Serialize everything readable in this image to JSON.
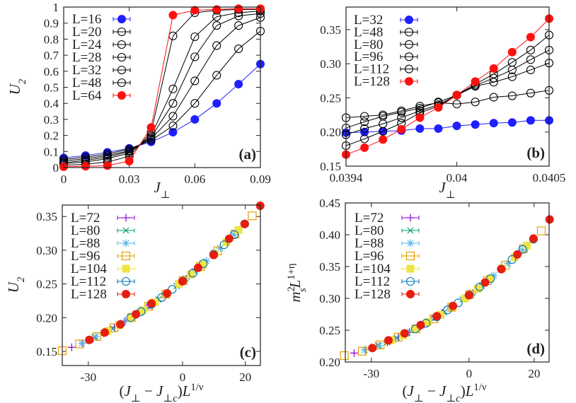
{
  "chart_data": [
    {
      "id": "a",
      "type": "line",
      "panel_label": "(a)",
      "xlabel": [
        {
          "t": "J",
          "s": "i"
        },
        {
          "t": "⊥",
          "s": "sub"
        }
      ],
      "ylabel": [
        {
          "t": "U",
          "s": "i"
        },
        {
          "t": "2",
          "s": "sub"
        }
      ],
      "xlim": [
        0,
        0.09
      ],
      "ylim": [
        0,
        1
      ],
      "xticks": [
        "0",
        "0.03",
        "0.06",
        "0.09"
      ],
      "yticks": [
        "0",
        "0.1",
        "0.2",
        "0.3",
        "0.4",
        "0.5",
        "0.6",
        "0.7",
        "0.8",
        "0.9",
        "1"
      ],
      "legend_position": "top-left",
      "x": [
        0,
        0.01,
        0.02,
        0.03,
        0.04,
        0.05,
        0.06,
        0.07,
        0.08,
        0.09
      ],
      "series": [
        {
          "name": "L=16",
          "color": "#1f1fff",
          "marker": "filled-circle",
          "values": [
            0.06,
            0.075,
            0.095,
            0.12,
            0.16,
            0.22,
            0.3,
            0.4,
            0.52,
            0.645
          ]
        },
        {
          "name": "L=20",
          "color": "#000000",
          "marker": "open-circle",
          "values": [
            0.05,
            0.065,
            0.085,
            0.115,
            0.17,
            0.26,
            0.4,
            0.575,
            0.74,
            0.85
          ]
        },
        {
          "name": "L=24",
          "color": "#000000",
          "marker": "open-circle",
          "values": [
            0.04,
            0.055,
            0.075,
            0.105,
            0.18,
            0.32,
            0.54,
            0.76,
            0.885,
            0.935
          ]
        },
        {
          "name": "L=28",
          "color": "#000000",
          "marker": "open-circle",
          "values": [
            0.03,
            0.045,
            0.065,
            0.1,
            0.19,
            0.4,
            0.69,
            0.885,
            0.945,
            0.96
          ]
        },
        {
          "name": "L=32",
          "color": "#000000",
          "marker": "open-circle",
          "values": [
            0.025,
            0.035,
            0.055,
            0.09,
            0.2,
            0.49,
            0.815,
            0.94,
            0.965,
            0.975
          ]
        },
        {
          "name": "L=48",
          "color": "#000000",
          "marker": "open-circle",
          "values": [
            0.015,
            0.02,
            0.035,
            0.07,
            0.22,
            0.82,
            0.965,
            0.98,
            0.985,
            0.985
          ]
        },
        {
          "name": "L=64",
          "color": "#ff1010",
          "marker": "filled-circle",
          "values": [
            0.005,
            0.008,
            0.012,
            0.04,
            0.25,
            0.95,
            0.98,
            0.985,
            0.99,
            0.99
          ]
        }
      ]
    },
    {
      "id": "b",
      "type": "line",
      "panel_label": "(b)",
      "xlabel": [
        {
          "t": "J",
          "s": "i"
        },
        {
          "t": "⊥",
          "s": "sub"
        }
      ],
      "ylabel": [],
      "xlim": [
        0.0394,
        0.0405
      ],
      "ylim": [
        0.15,
        0.383
      ],
      "xticks": [
        "0.0394",
        "0.04",
        "0.0405"
      ],
      "yticks": [
        "0.15",
        "0.20",
        "0.25",
        "0.30",
        "0.35"
      ],
      "legend_position": "top-left",
      "x": [
        0.0394,
        0.0395,
        0.0396,
        0.0397,
        0.0398,
        0.0399,
        0.04,
        0.0401,
        0.0402,
        0.0403,
        0.0404,
        0.0405
      ],
      "series": [
        {
          "name": "L=32",
          "color": "#1f1fff",
          "marker": "filled-circle",
          "values": [
            0.199,
            0.2,
            0.201,
            0.202,
            0.205,
            0.205,
            0.209,
            0.211,
            0.213,
            0.214,
            0.217,
            0.217
          ]
        },
        {
          "name": "L=48",
          "color": "#000000",
          "marker": "open-circle",
          "values": [
            0.221,
            0.223,
            0.225,
            0.231,
            0.238,
            0.243,
            0.241,
            0.244,
            0.251,
            0.253,
            0.257,
            0.261
          ]
        },
        {
          "name": "L=80",
          "color": "#000000",
          "marker": "open-circle",
          "values": [
            0.206,
            0.215,
            0.223,
            0.229,
            0.235,
            0.244,
            0.254,
            0.267,
            0.273,
            0.281,
            0.291,
            0.301
          ]
        },
        {
          "name": "L=96",
          "color": "#000000",
          "marker": "open-circle",
          "values": [
            0.196,
            0.205,
            0.212,
            0.221,
            0.231,
            0.24,
            0.254,
            0.268,
            0.279,
            0.291,
            0.306,
            0.32
          ]
        },
        {
          "name": "L=112",
          "color": "#000000",
          "marker": "open-circle",
          "values": [
            0.18,
            0.19,
            0.201,
            0.213,
            0.228,
            0.238,
            0.254,
            0.27,
            0.285,
            0.302,
            0.32,
            0.342
          ]
        },
        {
          "name": "L=128",
          "color": "#ff1010",
          "marker": "filled-circle",
          "values": [
            0.167,
            0.177,
            0.189,
            0.204,
            0.221,
            0.236,
            0.254,
            0.274,
            0.293,
            0.317,
            0.339,
            0.366
          ]
        }
      ]
    },
    {
      "id": "c",
      "type": "scatter",
      "panel_label": "(c)",
      "xlabel": [
        {
          "t": "(",
          "s": "n"
        },
        {
          "t": "J",
          "s": "i"
        },
        {
          "t": "⊥",
          "s": "sub"
        },
        {
          "t": " − ",
          "s": "n"
        },
        {
          "t": "J",
          "s": "i"
        },
        {
          "t": "⊥c",
          "s": "sub"
        },
        {
          "t": ")",
          "s": "n"
        },
        {
          "t": "L",
          "s": "i"
        },
        {
          "t": "1/ν",
          "s": "sup"
        }
      ],
      "ylabel": [
        {
          "t": "U",
          "s": "i"
        },
        {
          "t": "2",
          "s": "sub"
        }
      ],
      "xlim": [
        -38.3,
        24.8
      ],
      "ylim": [
        0.129,
        0.367
      ],
      "xticks": [
        "-30",
        "0",
        "20"
      ],
      "yticks": [
        "0.15",
        "0.20",
        "0.25",
        "0.30",
        "0.35"
      ],
      "legend_position": "top-left",
      "series": [
        {
          "name": "L=72",
          "color": "#9400d3",
          "marker": "plus",
          "x": [
            -35.3,
            -31.9,
            -28.5,
            -25.1,
            -21.7,
            -18.3,
            -14.9,
            -11.5,
            -8.1,
            -4.7,
            -1.3,
            2.1
          ],
          "y": [
            0.156,
            0.162,
            0.169,
            0.177,
            0.186,
            0.195,
            0.204,
            0.214,
            0.225,
            0.237,
            0.249,
            0.262
          ]
        },
        {
          "name": "L=80",
          "color": "#009e73",
          "marker": "cross",
          "x": [
            -28,
            -25.1,
            -22.2,
            -19.3,
            -16.4,
            -13.5,
            -10.6,
            -7.7,
            -4.8,
            -1.9,
            1,
            3.9
          ],
          "y": [
            0.171,
            0.177,
            0.184,
            0.192,
            0.2,
            0.208,
            0.217,
            0.227,
            0.237,
            0.247,
            0.258,
            0.269
          ]
        },
        {
          "name": "L=88",
          "color": "#56b4e9",
          "marker": "star",
          "x": [
            -32,
            -27.6,
            -23.2,
            -18.8,
            -14.4,
            -10,
            -5.6,
            -1.2,
            3.2,
            7.6,
            12,
            16.4
          ],
          "y": [
            0.162,
            0.172,
            0.182,
            0.193,
            0.206,
            0.219,
            0.234,
            0.25,
            0.266,
            0.284,
            0.303,
            0.323
          ]
        },
        {
          "name": "L=96",
          "color": "#e69f00",
          "marker": "open-square",
          "x": [
            -38.3,
            -32.8,
            -27.3,
            -21.8,
            -16.3,
            -10.8,
            -5.3,
            0.2,
            5.7,
            11.2,
            16.7,
            22.2
          ],
          "y": [
            0.151,
            0.161,
            0.172,
            0.185,
            0.2,
            0.217,
            0.235,
            0.255,
            0.276,
            0.299,
            0.324,
            0.351
          ]
        },
        {
          "name": "L=104",
          "color": "#f0e442",
          "marker": "filled-square",
          "x": [
            -24,
            -20.2,
            -16.4,
            -12.6,
            -8.8,
            -5,
            -1.2,
            2.6,
            6.4,
            10.2,
            14,
            17.8
          ],
          "y": [
            0.18,
            0.189,
            0.2,
            0.211,
            0.223,
            0.236,
            0.25,
            0.264,
            0.279,
            0.295,
            0.312,
            0.33
          ]
        },
        {
          "name": "L=112",
          "color": "#0072b2",
          "marker": "open-circle",
          "x": [
            -16.5,
            -13.2,
            -9.9,
            -6.6,
            -3.3,
            0,
            3.3,
            6.6,
            9.9,
            13.2,
            16.5,
            19.8
          ],
          "y": [
            0.2,
            0.209,
            0.22,
            0.23,
            0.242,
            0.254,
            0.266,
            0.28,
            0.294,
            0.308,
            0.323,
            0.339
          ]
        },
        {
          "name": "L=128",
          "color": "#e51e10",
          "marker": "filled-circle",
          "x": [
            -29.7,
            -24.75,
            -19.8,
            -14.85,
            -9.9,
            -4.95,
            0,
            4.95,
            9.9,
            14.85,
            19.8,
            24.75
          ],
          "y": [
            0.167,
            0.178,
            0.19,
            0.205,
            0.221,
            0.236,
            0.254,
            0.274,
            0.293,
            0.317,
            0.339,
            0.366
          ]
        }
      ]
    },
    {
      "id": "d",
      "type": "scatter",
      "panel_label": "(d)",
      "xlabel": [
        {
          "t": "(",
          "s": "n"
        },
        {
          "t": "J",
          "s": "i"
        },
        {
          "t": "⊥",
          "s": "sub"
        },
        {
          "t": " − ",
          "s": "n"
        },
        {
          "t": "J",
          "s": "i"
        },
        {
          "t": "⊥c",
          "s": "sub"
        },
        {
          "t": ")",
          "s": "n"
        },
        {
          "t": "L",
          "s": "i"
        },
        {
          "t": "1/ν",
          "s": "sup"
        }
      ],
      "ylabel": [
        {
          "t": "m",
          "s": "i"
        },
        {
          "t": "2",
          "s": "sup"
        },
        {
          "t": "s",
          "s": "subback"
        },
        {
          "t": "L",
          "s": "i"
        },
        {
          "t": "1+η",
          "s": "sup"
        }
      ],
      "xlim": [
        -38.0,
        24.6
      ],
      "ylim": [
        0.2,
        0.45
      ],
      "xticks": [
        "-30",
        "0",
        "20"
      ],
      "yticks": [
        "0.20",
        "0.25",
        "0.30",
        "0.35",
        "0.40",
        "0.45"
      ],
      "legend_position": "top-left",
      "series": [
        {
          "name": "L=72",
          "color": "#9400d3",
          "marker": "plus",
          "x": [
            -35.3,
            -31.9,
            -28.5,
            -25.1,
            -21.7,
            -18.3,
            -14.9,
            -11.5,
            -8.1,
            -4.7,
            -1.3,
            2.1
          ],
          "y": [
            0.214,
            0.219,
            0.225,
            0.231,
            0.239,
            0.247,
            0.256,
            0.266,
            0.277,
            0.288,
            0.3,
            0.313
          ]
        },
        {
          "name": "L=80",
          "color": "#009e73",
          "marker": "cross",
          "x": [
            -28,
            -25.1,
            -22.2,
            -19.3,
            -16.4,
            -13.5,
            -10.6,
            -7.7,
            -4.8,
            -1.9,
            1,
            3.9
          ],
          "y": [
            0.226,
            0.231,
            0.238,
            0.245,
            0.252,
            0.26,
            0.269,
            0.278,
            0.288,
            0.298,
            0.309,
            0.32
          ]
        },
        {
          "name": "L=88",
          "color": "#56b4e9",
          "marker": "star",
          "x": [
            -32,
            -27.6,
            -23.2,
            -18.8,
            -14.4,
            -10,
            -5.6,
            -1.2,
            3.2,
            7.6,
            12,
            16.4
          ],
          "y": [
            0.219,
            0.226,
            0.235,
            0.246,
            0.258,
            0.271,
            0.285,
            0.3,
            0.317,
            0.336,
            0.355,
            0.376
          ]
        },
        {
          "name": "L=96",
          "color": "#e69f00",
          "marker": "open-square",
          "x": [
            -38.3,
            -32.8,
            -27.3,
            -21.8,
            -16.3,
            -10.8,
            -5.3,
            0.2,
            5.7,
            11.2,
            16.7,
            22.2
          ],
          "y": [
            0.21,
            0.217,
            0.227,
            0.239,
            0.252,
            0.268,
            0.286,
            0.306,
            0.328,
            0.352,
            0.378,
            0.406
          ]
        },
        {
          "name": "L=104",
          "color": "#f0e442",
          "marker": "filled-square",
          "x": [
            -24,
            -20.2,
            -16.4,
            -12.6,
            -8.8,
            -5,
            -1.2,
            2.6,
            6.4,
            10.2,
            14,
            17.8
          ],
          "y": [
            0.234,
            0.242,
            0.252,
            0.263,
            0.274,
            0.287,
            0.3,
            0.315,
            0.331,
            0.347,
            0.365,
            0.383
          ]
        },
        {
          "name": "L=112",
          "color": "#0072b2",
          "marker": "open-circle",
          "x": [
            -16.5,
            -13.2,
            -9.9,
            -6.6,
            -3.3,
            0,
            3.3,
            6.6,
            9.9,
            13.2,
            16.5,
            19.8
          ],
          "y": [
            0.252,
            0.261,
            0.271,
            0.282,
            0.293,
            0.305,
            0.318,
            0.331,
            0.346,
            0.361,
            0.377,
            0.393
          ]
        },
        {
          "name": "L=128",
          "color": "#e51e10",
          "marker": "filled-circle",
          "x": [
            -29.7,
            -24.75,
            -19.8,
            -14.85,
            -9.9,
            -4.95,
            0,
            4.95,
            9.9,
            14.85,
            19.8,
            24.75
          ],
          "y": [
            0.222,
            0.234,
            0.245,
            0.258,
            0.272,
            0.288,
            0.305,
            0.325,
            0.346,
            0.369,
            0.394,
            0.424
          ]
        }
      ]
    }
  ]
}
